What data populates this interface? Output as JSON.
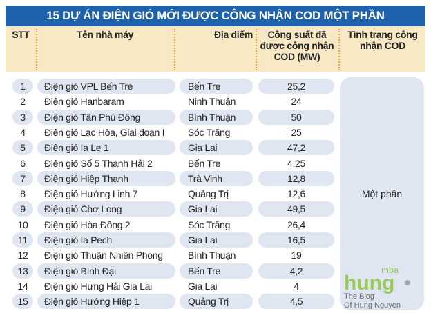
{
  "title": "15 DỰ ÁN ĐIỆN GIÓ MỚI ĐƯỢC CÔNG NHẬN COD MỘT PHẦN",
  "headers": {
    "stt": "STT",
    "name": "Tên nhà máy",
    "place": "Địa điểm",
    "capacity": "Công suất đã được công nhận COD (MW)",
    "status": "Tình trạng công nhận COD"
  },
  "status_value": "Một phần",
  "rows": [
    {
      "stt": "1",
      "name": "Điện gió VPL Bến Tre",
      "place": "Bến Tre",
      "capacity": "25,2"
    },
    {
      "stt": "2",
      "name": "Điện gió Hanbaram",
      "place": "Ninh Thuận",
      "capacity": "24"
    },
    {
      "stt": "3",
      "name": "Điện gió Tân Phú Đông",
      "place": "Bình Thuận",
      "capacity": "50"
    },
    {
      "stt": "4",
      "name": "Điện gió Lạc Hòa, Giai đoạn I",
      "place": "Sóc Trăng",
      "capacity": "25"
    },
    {
      "stt": "5",
      "name": "Điện gió Ia Le 1",
      "place": "Gia Lai",
      "capacity": "47,2"
    },
    {
      "stt": "6",
      "name": "Điện gió Số 5 Thạnh Hải 2",
      "place": "Bến Tre",
      "capacity": "4,25"
    },
    {
      "stt": "7",
      "name": "Điện gió Hiệp Thạnh",
      "place": "Trà Vinh",
      "capacity": "12,8"
    },
    {
      "stt": "8",
      "name": "Điện gió Hướng Linh 7",
      "place": "Quảng Trị",
      "capacity": "12,6"
    },
    {
      "stt": "9",
      "name": "Điện gió Chơ Long",
      "place": "Gia Lai",
      "capacity": "49,5"
    },
    {
      "stt": "10",
      "name": "Điện gió Hòa Đông 2",
      "place": "Sóc Trăng",
      "capacity": "26,4"
    },
    {
      "stt": "11",
      "name": "Điện gió Ia Pech",
      "place": "Gia Lai",
      "capacity": "16,5"
    },
    {
      "stt": "12",
      "name": "Điện gió Thuận Nhiên Phong",
      "place": "Bình Thuận",
      "capacity": "19"
    },
    {
      "stt": "13",
      "name": "Điện gió Bình Đại",
      "place": "Bến Tre",
      "capacity": "4,2"
    },
    {
      "stt": "14",
      "name": "Điện gió Hưng Hải Gia Lai",
      "place": "Gia Lai",
      "capacity": "4"
    },
    {
      "stt": "15",
      "name": "Điện gió Hướng Hiệp 1",
      "place": "Quảng Trị",
      "capacity": "4,5"
    }
  ],
  "watermark": {
    "logo": "hung mba",
    "tagline1": "The Blog",
    "tagline2": "Of Hung Nguyen"
  },
  "colors": {
    "title_bg": "#1d62ab",
    "header_bg": "#f9e8c4",
    "pill": "#dfe5f1",
    "watermark": "#8cc63f"
  }
}
